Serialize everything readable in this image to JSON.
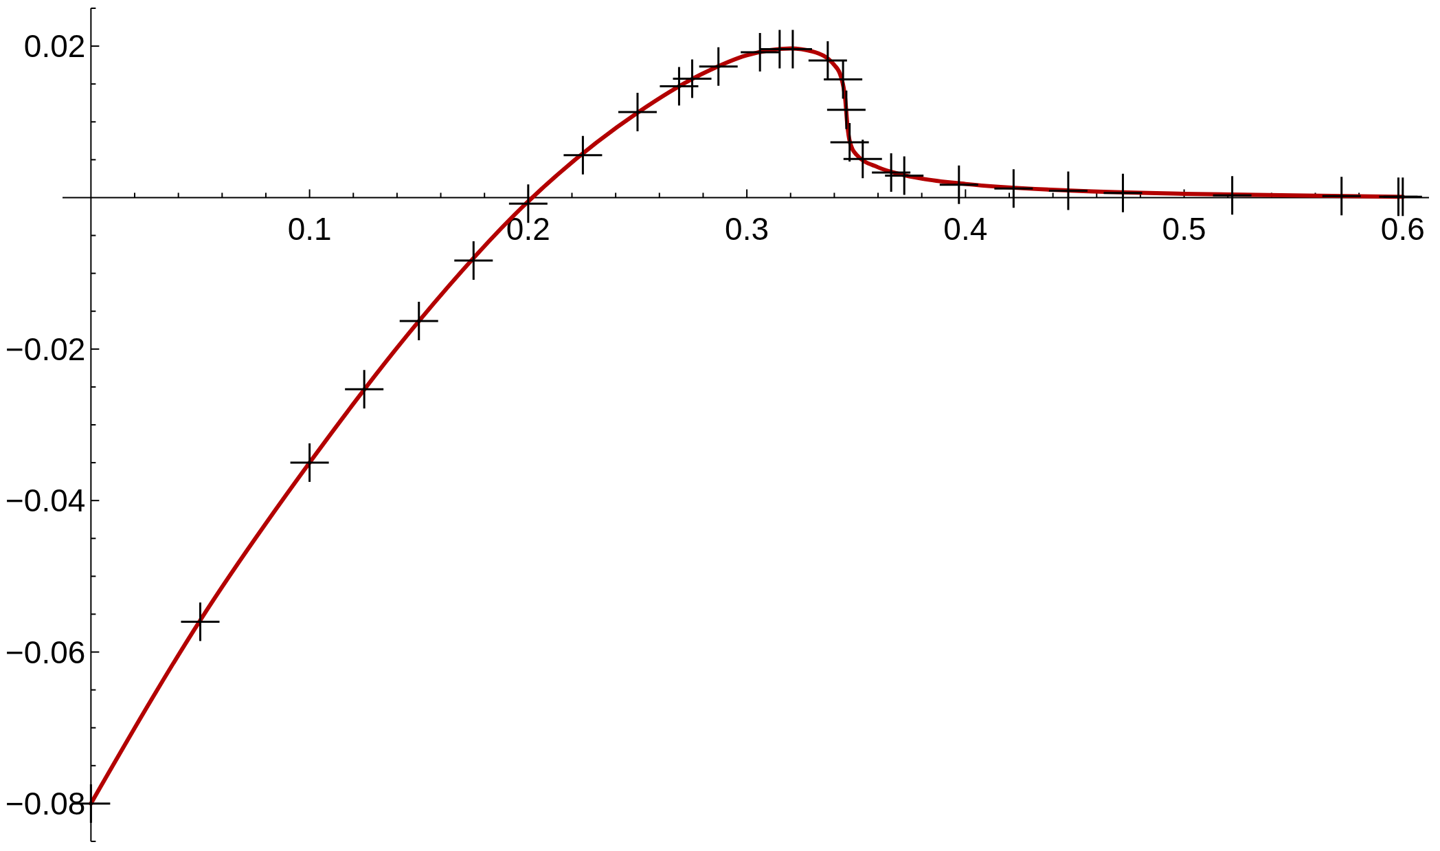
{
  "chart_data": {
    "type": "line",
    "grid": false,
    "xlim": [
      -0.013,
      0.612
    ],
    "ylim": [
      -0.085,
      0.025
    ],
    "xticks": [
      {
        "value": 0.02,
        "label": null
      },
      {
        "value": 0.04,
        "label": null
      },
      {
        "value": 0.06,
        "label": null
      },
      {
        "value": 0.08,
        "label": null
      },
      0.1,
      {
        "value": 0.12,
        "label": null
      },
      {
        "value": 0.14,
        "label": null
      },
      {
        "value": 0.16,
        "label": null
      },
      {
        "value": 0.18,
        "label": null
      },
      0.2,
      {
        "value": 0.22,
        "label": null
      },
      {
        "value": 0.24,
        "label": null
      },
      {
        "value": 0.26,
        "label": null
      },
      {
        "value": 0.28,
        "label": null
      },
      0.3,
      {
        "value": 0.32,
        "label": null
      },
      {
        "value": 0.34,
        "label": null
      },
      {
        "value": 0.36,
        "label": null
      },
      {
        "value": 0.38,
        "label": null
      },
      0.4,
      {
        "value": 0.42,
        "label": null
      },
      {
        "value": 0.44,
        "label": null
      },
      {
        "value": 0.46,
        "label": null
      },
      {
        "value": 0.48,
        "label": null
      },
      0.5,
      {
        "value": 0.52,
        "label": null
      },
      {
        "value": 0.54,
        "label": null
      },
      {
        "value": 0.56,
        "label": null
      },
      {
        "value": 0.58,
        "label": null
      },
      0.6
    ],
    "yticks": [
      {
        "value": -0.085,
        "label": null
      },
      {
        "value": -0.08,
        "label": "−0.08"
      },
      {
        "value": -0.075,
        "label": null
      },
      {
        "value": -0.07,
        "label": null
      },
      {
        "value": -0.065,
        "label": null
      },
      {
        "value": -0.06,
        "label": "−0.06"
      },
      {
        "value": -0.055,
        "label": null
      },
      {
        "value": -0.05,
        "label": null
      },
      {
        "value": -0.045,
        "label": null
      },
      {
        "value": -0.04,
        "label": "−0.04"
      },
      {
        "value": -0.035,
        "label": null
      },
      {
        "value": -0.03,
        "label": null
      },
      {
        "value": -0.025,
        "label": null
      },
      {
        "value": -0.02,
        "label": "−0.02"
      },
      {
        "value": -0.015,
        "label": null
      },
      {
        "value": -0.01,
        "label": null
      },
      {
        "value": -0.005,
        "label": null
      },
      {
        "value": 0.005,
        "label": null
      },
      {
        "value": 0.01,
        "label": null
      },
      {
        "value": 0.015,
        "label": null
      },
      0.02,
      {
        "value": 0.025,
        "label": null
      }
    ],
    "series": [
      {
        "color": "#b30000",
        "marker": "none",
        "x": [
          0,
          0.05,
          0.1,
          0.15,
          0.2,
          0.25,
          0.28,
          0.3,
          0.32,
          0.33,
          0.34,
          0.343,
          0.345,
          0.346,
          0.347,
          0.35,
          0.36,
          0.37,
          0.38,
          0.4,
          0.45,
          0.5,
          0.55,
          0.6
        ],
        "values": [
          -0.08,
          -0.0558,
          -0.035,
          -0.0163,
          -0.0005,
          0.0112,
          0.0164,
          0.0188,
          0.0197,
          0.0193,
          0.0175,
          0.016,
          0.013,
          0.0095,
          0.0075,
          0.0057,
          0.004,
          0.0031,
          0.0025,
          0.0018,
          0.0009,
          0.0005,
          0.0003,
          0.0001
        ]
      },
      {
        "type": "scatter",
        "marker": "cross",
        "color": "#000000",
        "x": [
          0,
          0.05,
          0.1,
          0.125,
          0.15,
          0.175,
          0.2,
          0.225,
          0.25,
          0.269,
          0.275,
          0.287,
          0.306,
          0.315,
          0.321,
          0.337,
          0.344,
          0.3455,
          0.347,
          0.353,
          0.366,
          0.372,
          0.397,
          0.422,
          0.447,
          0.472,
          0.522,
          0.572,
          0.598,
          0.6
        ],
        "values": [
          -0.08,
          -0.056,
          -0.035,
          -0.0253,
          -0.0163,
          -0.0083,
          -0.0008,
          0.0056,
          0.0113,
          0.0147,
          0.0157,
          0.0173,
          0.0192,
          0.0196,
          0.0196,
          0.0181,
          0.0156,
          0.0116,
          0.0073,
          0.0051,
          0.0033,
          0.0029,
          0.0017,
          0.0012,
          0.0009,
          0.0006,
          0.0003,
          0.0002,
          0.0001,
          0.0001
        ]
      }
    ]
  }
}
